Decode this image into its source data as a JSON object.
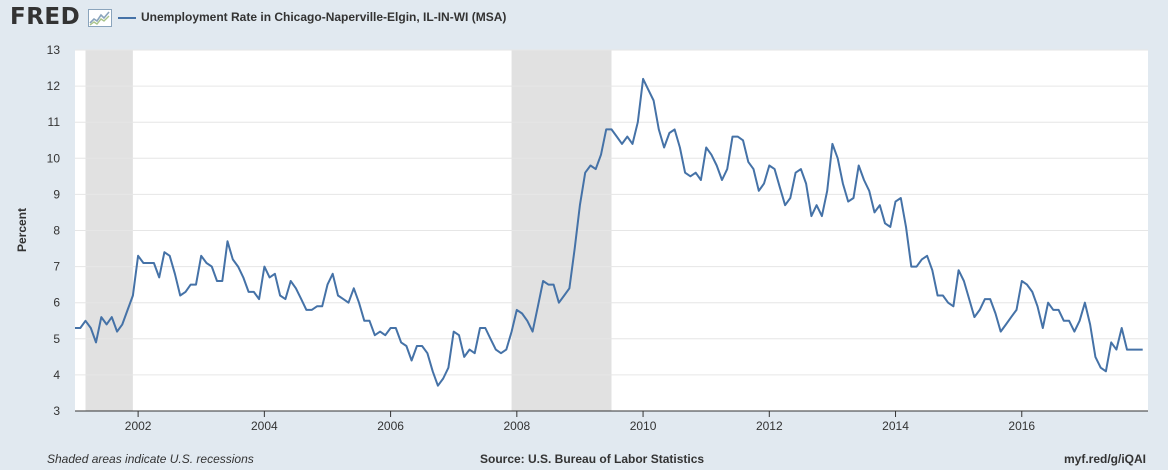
{
  "brand": {
    "logo_text": "FRED",
    "logo_icon": "fred-chart-logo-icon"
  },
  "colors": {
    "line": "#4572a7",
    "recession": "#e1e1e1",
    "background": "#e1e9f0",
    "plot": "#ffffff"
  },
  "chart_data": {
    "type": "line",
    "title": "",
    "xlabel": "",
    "ylabel": "Percent",
    "grid": true,
    "legend": "top-left",
    "ylim": [
      3,
      13
    ],
    "xlim": [
      "2001-01",
      "2017-12"
    ],
    "yticks": [
      "3",
      "4",
      "5",
      "6",
      "7",
      "8",
      "9",
      "10",
      "11",
      "12",
      "13"
    ],
    "xticks": [
      "2002",
      "2004",
      "2006",
      "2008",
      "2010",
      "2012",
      "2014",
      "2016"
    ],
    "recessions": [
      {
        "start": "2001-03",
        "end": "2001-11"
      },
      {
        "start": "2007-12",
        "end": "2009-06"
      }
    ],
    "series": [
      {
        "name": "Unemployment Rate in Chicago-Naperville-Elgin, IL-IN-WI (MSA)",
        "start": "2001-01",
        "frequency": "monthly",
        "values": [
          5.3,
          5.3,
          5.5,
          5.3,
          4.9,
          5.6,
          5.4,
          5.6,
          5.2,
          5.4,
          5.8,
          6.2,
          7.3,
          7.1,
          7.1,
          7.1,
          6.7,
          7.4,
          7.3,
          6.8,
          6.2,
          6.3,
          6.5,
          6.5,
          7.3,
          7.1,
          7.0,
          6.6,
          6.6,
          7.7,
          7.2,
          7.0,
          6.7,
          6.3,
          6.3,
          6.1,
          7.0,
          6.7,
          6.8,
          6.2,
          6.1,
          6.6,
          6.4,
          6.1,
          5.8,
          5.8,
          5.9,
          5.9,
          6.5,
          6.8,
          6.2,
          6.1,
          6.0,
          6.4,
          6.0,
          5.5,
          5.5,
          5.1,
          5.2,
          5.1,
          5.3,
          5.3,
          4.9,
          4.8,
          4.4,
          4.8,
          4.8,
          4.6,
          4.1,
          3.7,
          3.9,
          4.2,
          5.2,
          5.1,
          4.5,
          4.7,
          4.6,
          5.3,
          5.3,
          5.0,
          4.7,
          4.6,
          4.7,
          5.2,
          5.8,
          5.7,
          5.5,
          5.2,
          5.9,
          6.6,
          6.5,
          6.5,
          6.0,
          6.2,
          6.4,
          7.5,
          8.7,
          9.6,
          9.8,
          9.7,
          10.1,
          10.8,
          10.8,
          10.6,
          10.4,
          10.6,
          10.4,
          11.0,
          12.2,
          11.9,
          11.6,
          10.8,
          10.3,
          10.7,
          10.8,
          10.3,
          9.6,
          9.5,
          9.6,
          9.4,
          10.3,
          10.1,
          9.8,
          9.4,
          9.7,
          10.6,
          10.6,
          10.5,
          9.9,
          9.7,
          9.1,
          9.3,
          9.8,
          9.7,
          9.2,
          8.7,
          8.9,
          9.6,
          9.7,
          9.3,
          8.4,
          8.7,
          8.4,
          9.1,
          10.4,
          10.0,
          9.3,
          8.8,
          8.9,
          9.8,
          9.4,
          9.1,
          8.5,
          8.7,
          8.2,
          8.1,
          8.8,
          8.9,
          8.1,
          7.0,
          7.0,
          7.2,
          7.3,
          6.9,
          6.2,
          6.2,
          6.0,
          5.9,
          6.9,
          6.6,
          6.1,
          5.6,
          5.8,
          6.1,
          6.1,
          5.7,
          5.2,
          5.4,
          5.6,
          5.8,
          6.6,
          6.5,
          6.3,
          5.9,
          5.3,
          6.0,
          5.8,
          5.8,
          5.5,
          5.5,
          5.2,
          5.5,
          6.0,
          5.4,
          4.5,
          4.2,
          4.1,
          4.9,
          4.7,
          5.3,
          4.7,
          4.7,
          4.7,
          4.7
        ]
      }
    ]
  },
  "footer": {
    "note": "Shaded areas indicate U.S. recessions",
    "source": "Source: U.S. Bureau of Labor Statistics",
    "link": "myf.red/g/iQAI"
  }
}
